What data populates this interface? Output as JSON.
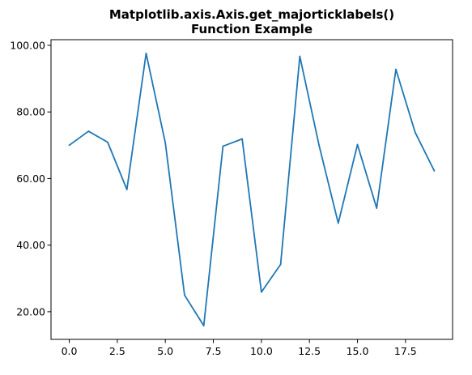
{
  "chart_data": {
    "type": "line",
    "title_line1": "Matplotlib.axis.Axis.get_majorticklabels()",
    "title_line2": "Function Example",
    "xlabel": "",
    "ylabel": "",
    "x": [
      0,
      1,
      2,
      3,
      4,
      5,
      6,
      7,
      8,
      9,
      10,
      11,
      12,
      13,
      14,
      15,
      16,
      17,
      18,
      19
    ],
    "series": [
      {
        "values": [
          70.0,
          74.2,
          70.9,
          56.7,
          97.6,
          70.7,
          25.0,
          15.8,
          69.7,
          71.9,
          25.9,
          34.2,
          96.7,
          70.0,
          46.6,
          70.2,
          51.1,
          92.8,
          73.9,
          62.3
        ],
        "color": "#1f77b4"
      }
    ],
    "xlim": [
      -0.95,
      19.95
    ],
    "ylim": [
      11.7,
      101.7
    ],
    "x_ticks": [
      0.0,
      2.5,
      5.0,
      7.5,
      10.0,
      12.5,
      15.0,
      17.5
    ],
    "x_tick_labels": [
      "0.0",
      "2.5",
      "5.0",
      "7.5",
      "10.0",
      "12.5",
      "15.0",
      "17.5"
    ],
    "y_ticks": [
      20,
      40,
      60,
      80,
      100
    ],
    "y_tick_labels": [
      "20.00",
      "40.00",
      "60.00",
      "80.00",
      "100.00"
    ],
    "grid": false,
    "legend": "none"
  }
}
